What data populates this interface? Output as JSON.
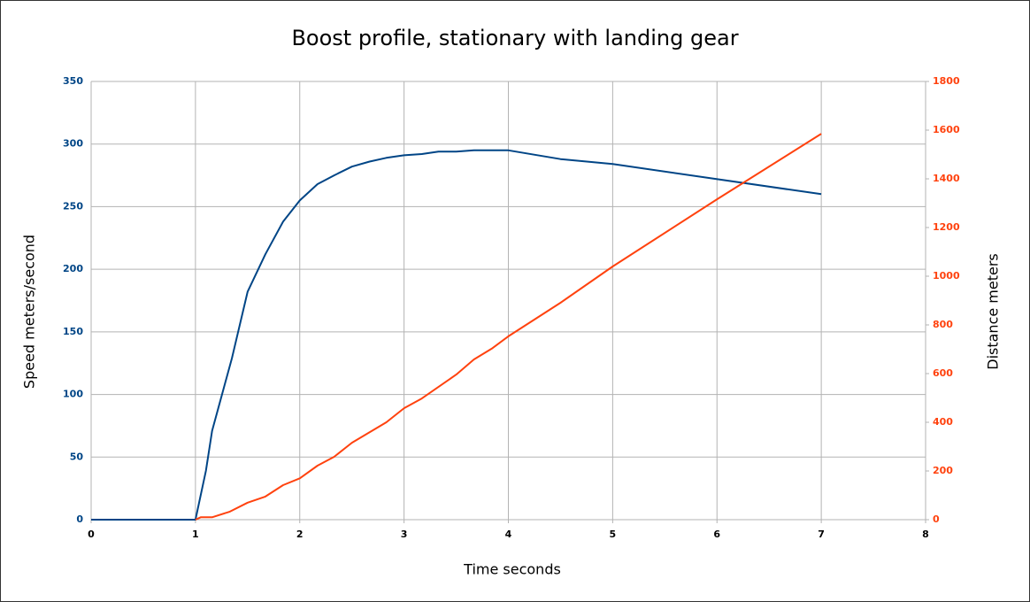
{
  "chart_data": {
    "type": "line",
    "title": "Boost profile, stationary with landing gear",
    "x_label": "Time seconds",
    "y_label": "Speed meters/second",
    "y2_label": "Distance meters",
    "xlim": [
      0,
      8
    ],
    "xticks": [
      0,
      1,
      2,
      3,
      4,
      5,
      6,
      7,
      8
    ],
    "ylim": [
      0,
      350
    ],
    "yticks": [
      0,
      50,
      100,
      150,
      200,
      250,
      300,
      350
    ],
    "y2lim": [
      0,
      1800
    ],
    "y2ticks": [
      0,
      200,
      400,
      600,
      800,
      1000,
      1200,
      1400,
      1600,
      1800
    ],
    "grid": true,
    "series": [
      {
        "name": "Speed",
        "color": "#004586",
        "x": [
          0,
          1,
          1.1,
          1.16,
          1.35,
          1.5,
          1.67,
          1.84,
          2,
          2.17,
          2.33,
          2.5,
          2.67,
          2.83,
          3,
          3.17,
          3.33,
          3.5,
          3.67,
          4,
          4.5,
          5,
          7
        ],
        "values": [
          0,
          0,
          39,
          71,
          129,
          182,
          212,
          238,
          255,
          268,
          275,
          282,
          286,
          289,
          291,
          292,
          294,
          294,
          295,
          295,
          288,
          284,
          260
        ]
      },
      {
        "name": "Distance",
        "color": "#ff420e",
        "axis": "y2",
        "x": [
          1,
          1.05,
          1.16,
          1.33,
          1.5,
          1.67,
          1.84,
          2,
          2.17,
          2.33,
          2.5,
          2.83,
          3,
          3.17,
          3.5,
          3.67,
          3.84,
          4,
          4.5,
          5,
          6,
          7
        ],
        "values": [
          0,
          10,
          10,
          33,
          70,
          95,
          142,
          170,
          222,
          258,
          316,
          400,
          458,
          498,
          596,
          658,
          702,
          753,
          891,
          1040,
          1316,
          1585
        ]
      }
    ]
  }
}
